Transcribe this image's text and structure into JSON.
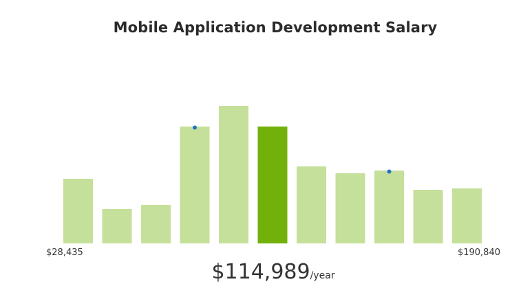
{
  "header": {
    "title": "Mobile Application Development Salary"
  },
  "range": {
    "min_label": "$28,435",
    "max_label": "$190,840"
  },
  "salary": {
    "value": "$114,989",
    "unit": "/year"
  },
  "colors": {
    "bar": "#c5e09a",
    "highlight_bar": "#72b10a",
    "marker": "#2472c8"
  },
  "chart_data": {
    "type": "bar",
    "min": 28435,
    "max": 190840,
    "values": [
      47,
      25,
      28,
      85,
      100,
      85,
      56,
      51,
      53,
      39,
      40
    ],
    "highlight_index": 5,
    "marker_indices": [
      3,
      8
    ],
    "ylim": [
      0,
      100
    ],
    "grid": false,
    "legend": "none"
  }
}
